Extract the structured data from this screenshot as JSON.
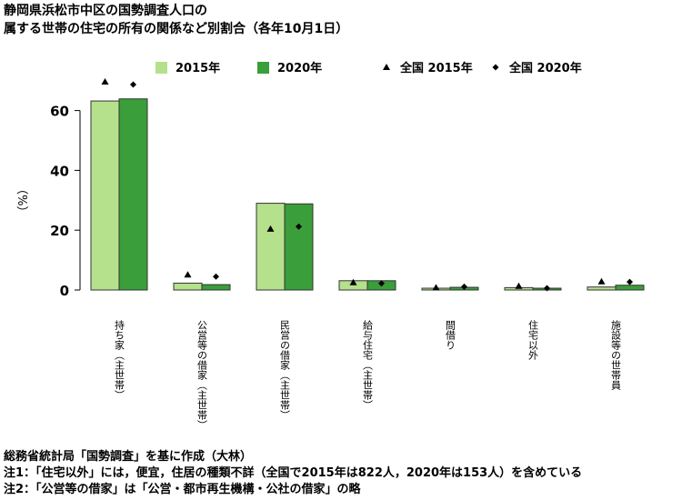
{
  "title": {
    "line1": "静岡県浜松市中区の国勢調査人口の",
    "line2": "属する世帯の住宅の所有の関係など別割合（各年10月1日）"
  },
  "notes": {
    "source": "総務省統計局「国勢調査」を基に作成（大林）",
    "note1": "注1：「住宅以外」には，便宜，住居の種類不詳（全国で2015年は822人，2020年は153人）を含めている",
    "note2": "注2：「公営等の借家」は「公営・都市再生機構・公社の借家」の略"
  },
  "colors": {
    "bar_2015": "#b5e08c",
    "bar_2020": "#3a9e3a",
    "bar_outline": "#333333",
    "marker": "#000000"
  },
  "chart_data": {
    "type": "bar",
    "ylabel": "（%）",
    "ylim": [
      0,
      70
    ],
    "yticks": [
      0,
      20,
      40,
      60
    ],
    "categories": [
      "持ち家（主世帯）",
      "公営等の借家（主世帯）",
      "民営の借家（主世帯）",
      "給与住宅（主世帯）",
      "間借り",
      "住宅以外",
      "施設等の世帯員"
    ],
    "series": [
      {
        "name": "2015年",
        "kind": "bar",
        "values": [
          63.2,
          2.3,
          29.0,
          3.1,
          0.6,
          0.8,
          1.0
        ]
      },
      {
        "name": "2020年",
        "kind": "bar",
        "values": [
          63.9,
          1.8,
          28.8,
          3.1,
          0.9,
          0.6,
          1.6
        ]
      },
      {
        "name": "全国 2015年",
        "kind": "marker",
        "marker": "triangle",
        "values": [
          69.6,
          5.1,
          20.4,
          2.5,
          0.8,
          1.3,
          2.8
        ]
      },
      {
        "name": "全国 2020年",
        "kind": "marker",
        "marker": "diamond",
        "values": [
          68.7,
          4.5,
          21.2,
          2.2,
          1.1,
          0.6,
          2.7
        ]
      }
    ],
    "legend_position": "top"
  }
}
